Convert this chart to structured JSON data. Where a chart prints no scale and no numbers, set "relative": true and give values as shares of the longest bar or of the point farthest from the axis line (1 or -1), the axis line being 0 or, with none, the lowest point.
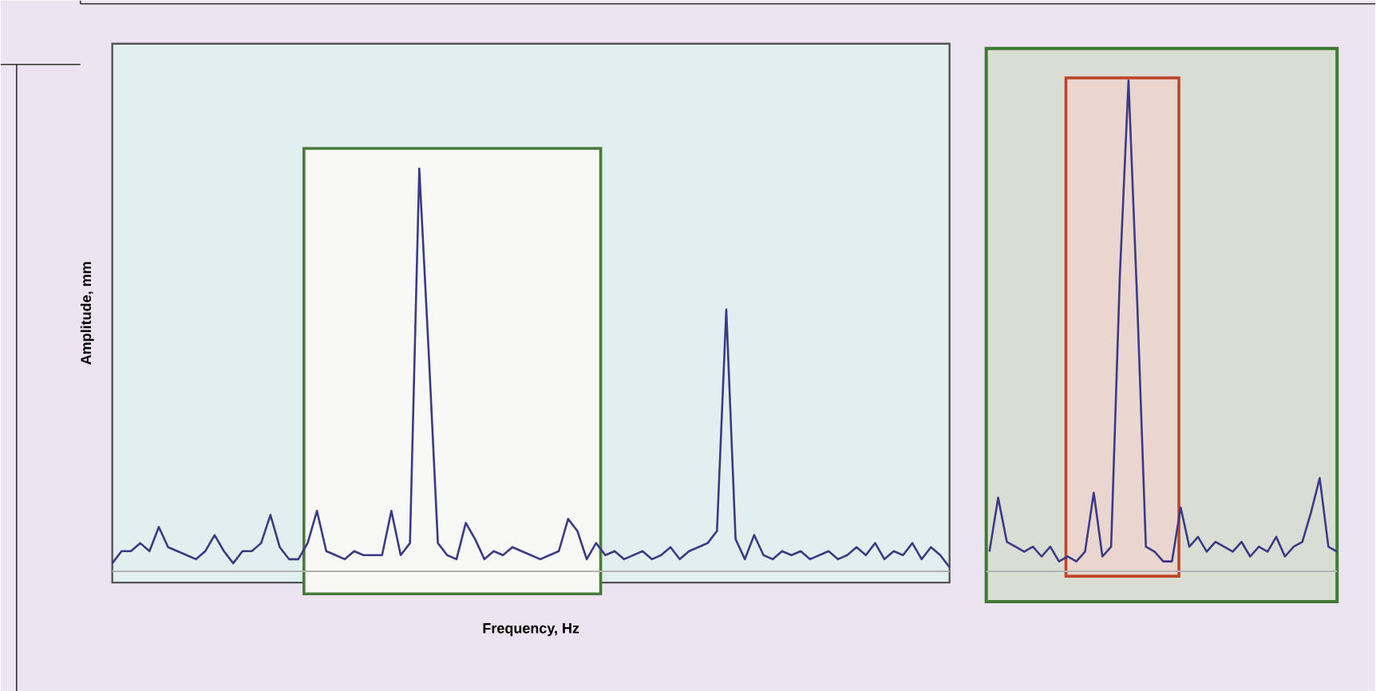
{
  "chart_data": [
    {
      "type": "line",
      "relative": true,
      "xlabel": "Frequency, Hz",
      "ylabel": "Amplitude, mm",
      "categories": [
        null,
        null,
        null,
        null,
        null,
        null,
        null,
        null,
        null,
        null,
        null,
        null,
        null,
        null,
        null,
        null,
        null,
        null,
        null,
        null,
        null,
        null,
        null,
        null,
        null,
        null,
        null,
        null,
        null,
        null,
        null,
        null,
        null,
        null,
        null,
        null,
        null,
        null,
        null,
        null,
        null,
        null,
        null,
        null,
        null,
        null,
        null,
        null,
        null,
        null,
        null,
        null,
        null,
        null,
        null,
        null,
        null,
        null,
        null,
        null,
        null,
        null,
        null,
        null,
        null,
        null,
        null,
        null,
        null,
        null,
        null,
        null,
        null,
        null,
        null,
        null,
        null,
        null,
        null,
        null,
        null,
        null,
        null,
        null,
        null,
        null,
        null,
        null,
        null,
        null,
        null
      ],
      "series": [
        {
          "color": "#3b3a86",
          "values": [
            0.02,
            0.05,
            0.05,
            0.07,
            0.05,
            0.11,
            0.06,
            0.05,
            0.04,
            0.03,
            0.05,
            0.09,
            0.05,
            0.02,
            0.05,
            0.05,
            0.07,
            0.14,
            0.06,
            0.03,
            0.03,
            0.07,
            0.15,
            0.05,
            0.04,
            0.03,
            0.05,
            0.04,
            0.04,
            0.04,
            0.15,
            0.04,
            0.07,
            1,
            0.55,
            0.07,
            0.04,
            0.03,
            0.12,
            0.08,
            0.03,
            0.05,
            0.04,
            0.06,
            0.05,
            0.04,
            0.03,
            0.04,
            0.05,
            0.13,
            0.1,
            0.03,
            0.07,
            0.04,
            0.05,
            0.03,
            0.04,
            0.05,
            0.03,
            0.04,
            0.06,
            0.03,
            0.05,
            0.06,
            0.07,
            0.1,
            0.65,
            0.08,
            0.03,
            0.09,
            0.04,
            0.03,
            0.05,
            0.04,
            0.05,
            0.03,
            0.04,
            0.05,
            0.03,
            0.04,
            0.06,
            0.04,
            0.07,
            0.03,
            0.05,
            0.04,
            0.07,
            0.03,
            0.06,
            0.04,
            0.01
          ]
        }
      ]
    },
    {
      "type": "line",
      "relative": true,
      "categories": [
        null,
        null,
        null,
        null,
        null,
        null,
        null,
        null,
        null,
        null,
        null,
        null,
        null,
        null,
        null,
        null,
        null,
        null,
        null,
        null,
        null,
        null,
        null,
        null,
        null,
        null,
        null,
        null,
        null,
        null,
        null,
        null,
        null,
        null,
        null,
        null,
        null,
        null,
        null,
        null,
        null
      ],
      "series": [
        {
          "color": "#3b3a86",
          "values": [
            0.04,
            0.15,
            0.06,
            0.05,
            0.04,
            0.05,
            0.03,
            0.05,
            0.02,
            0.03,
            0.02,
            0.04,
            0.16,
            0.03,
            0.05,
            0.6,
            1,
            0.55,
            0.05,
            0.04,
            0.02,
            0.02,
            0.13,
            0.05,
            0.07,
            0.04,
            0.06,
            0.05,
            0.04,
            0.06,
            0.03,
            0.05,
            0.04,
            0.07,
            0.03,
            0.05,
            0.06,
            0.12,
            0.19,
            0.05,
            0.04
          ]
        }
      ]
    }
  ]
}
